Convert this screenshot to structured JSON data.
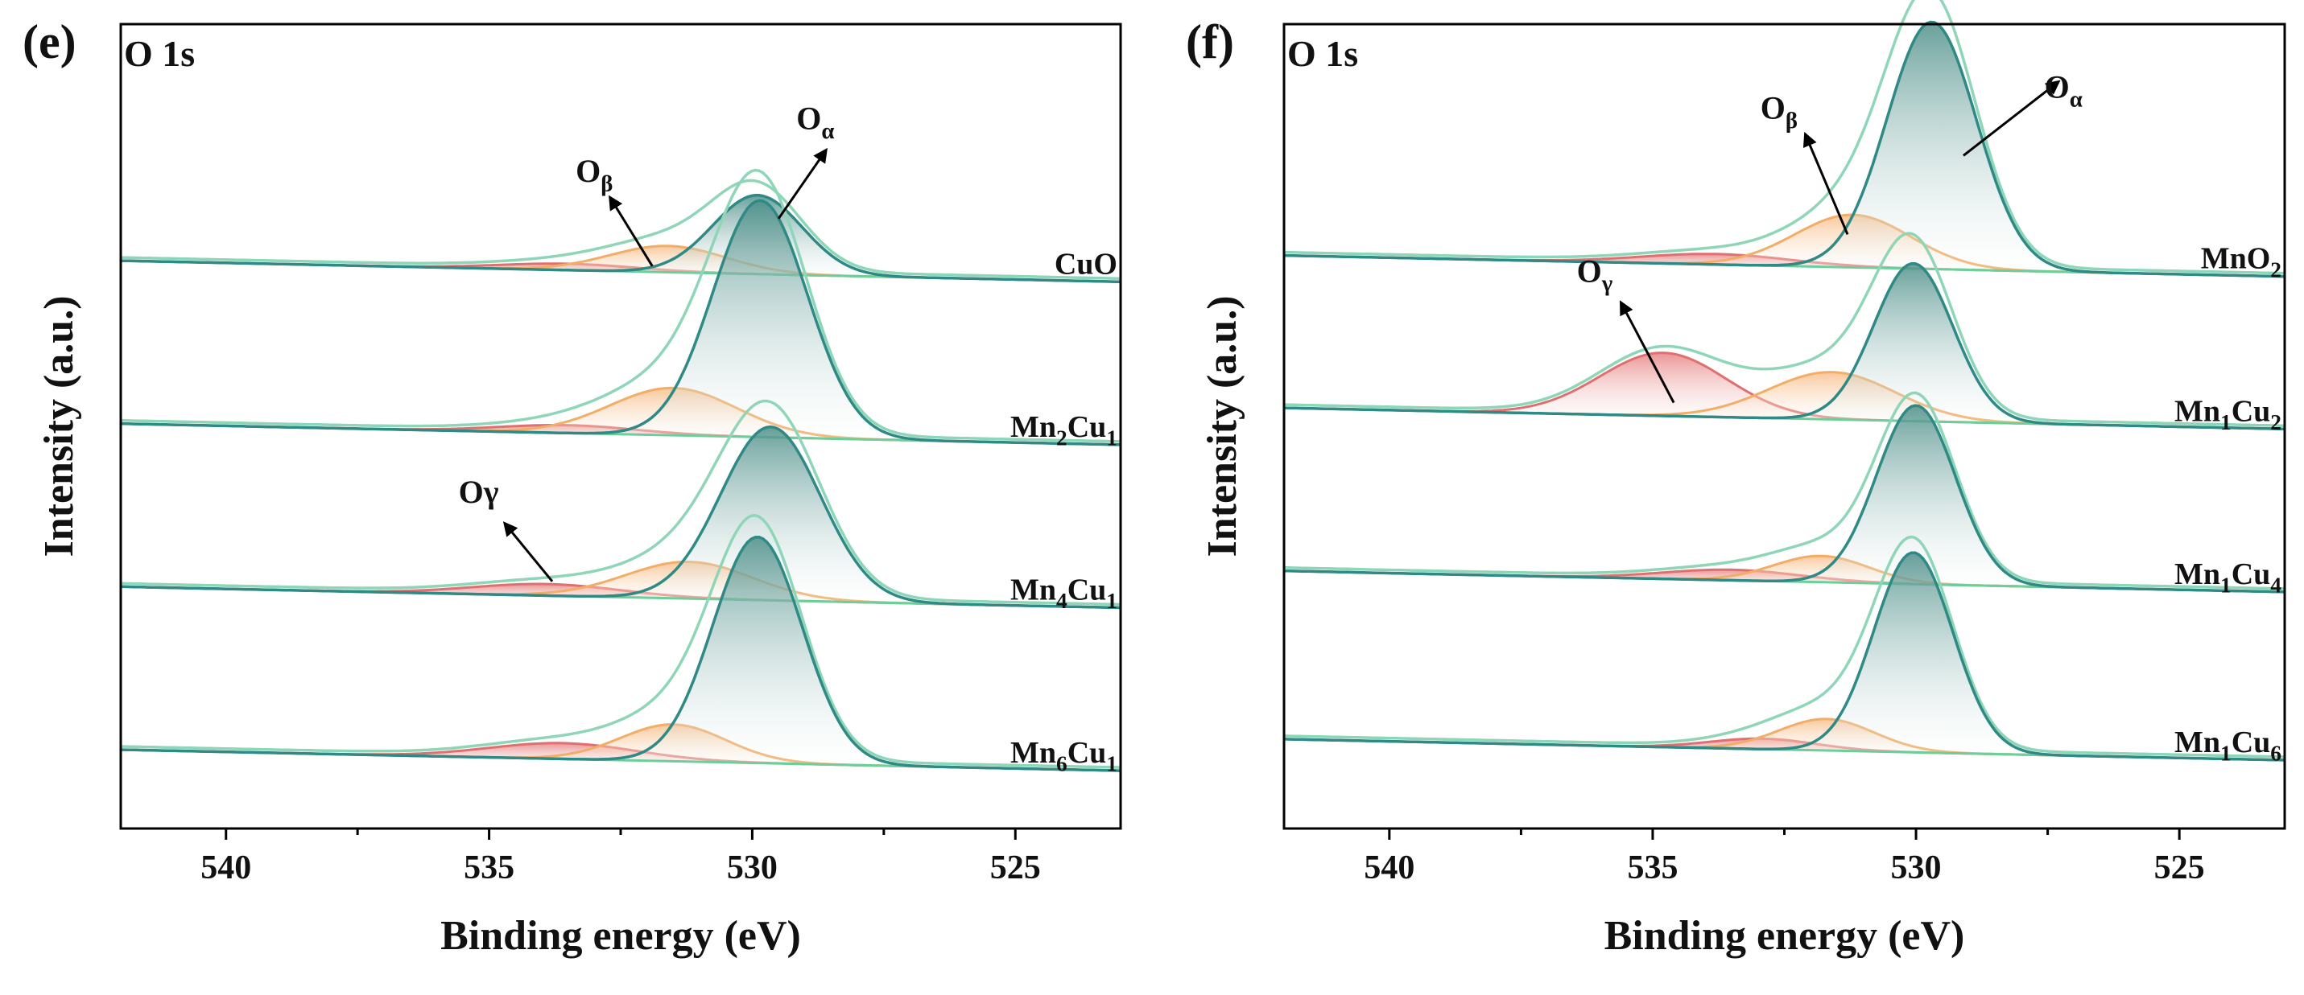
{
  "figure": {
    "panels": [
      "e",
      "f"
    ]
  },
  "chart_data": [
    {
      "type": "line",
      "panel_label": "(e)",
      "title": "O 1s",
      "xlabel": "Binding energy (eV)",
      "ylabel": "Intensity (a.u.)",
      "x_reversed": true,
      "xlim": [
        542,
        523
      ],
      "xticks": [
        540,
        535,
        530,
        525
      ],
      "series": [
        {
          "name": "CuO",
          "sample": {
            "base": "CuO",
            "parts": [
              {
                "t": "CuO"
              }
            ]
          },
          "offset": 0.83,
          "tilt": -0.04,
          "peaks": [
            {
              "component": "Oα",
              "center": 529.9,
              "height": 0.15,
              "width": 0.85
            },
            {
              "component": "Oβ",
              "center": 531.6,
              "height": 0.05,
              "width": 1.1
            },
            {
              "component": "Oγ",
              "center": 533.5,
              "height": 0.012,
              "width": 1.3
            }
          ]
        },
        {
          "name": "Mn2Cu1",
          "sample": {
            "base": "Mn2Cu1",
            "parts": [
              {
                "t": "Mn"
              },
              {
                "t": "2",
                "sub": true
              },
              {
                "t": "Cu"
              },
              {
                "t": "1",
                "sub": true
              }
            ]
          },
          "offset": 0.52,
          "tilt": -0.04,
          "peaks": [
            {
              "component": "Oα",
              "center": 529.85,
              "height": 0.45,
              "width": 0.9
            },
            {
              "component": "Oβ",
              "center": 531.5,
              "height": 0.09,
              "width": 1.2
            },
            {
              "component": "Oγ",
              "center": 533.5,
              "height": 0.015,
              "width": 1.3
            }
          ]
        },
        {
          "name": "Mn4Cu1",
          "sample": {
            "base": "Mn4Cu1",
            "parts": [
              {
                "t": "Mn"
              },
              {
                "t": "4",
                "sub": true
              },
              {
                "t": "Cu"
              },
              {
                "t": "1",
                "sub": true
              }
            ]
          },
          "offset": 0.21,
          "tilt": -0.04,
          "peaks": [
            {
              "component": "Oα",
              "center": 529.65,
              "height": 0.33,
              "width": 0.95
            },
            {
              "component": "Oβ",
              "center": 531.2,
              "height": 0.07,
              "width": 1.2
            },
            {
              "component": "Oγ",
              "center": 533.9,
              "height": 0.022,
              "width": 1.4
            }
          ]
        },
        {
          "name": "Mn6Cu1",
          "sample": {
            "base": "Mn6Cu1",
            "parts": [
              {
                "t": "Mn"
              },
              {
                "t": "6",
                "sub": true
              },
              {
                "t": "Cu"
              },
              {
                "t": "1",
                "sub": true
              }
            ]
          },
          "offset": -0.1,
          "tilt": -0.04,
          "peaks": [
            {
              "component": "Oα",
              "center": 529.9,
              "height": 0.43,
              "width": 0.85
            },
            {
              "component": "Oβ",
              "center": 531.5,
              "height": 0.07,
              "width": 1.0
            },
            {
              "component": "Oγ",
              "center": 533.6,
              "height": 0.03,
              "width": 1.4
            }
          ]
        }
      ],
      "annotations": [
        {
          "text": "Oβ",
          "parts": [
            {
              "t": "O"
            },
            {
              "t": "β",
              "sub": true
            }
          ],
          "tip": [
            531.9,
            0.82
          ],
          "tail": [
            532.7,
            0.95
          ],
          "label": [
            533.0,
            0.98
          ]
        },
        {
          "text": "Oα",
          "parts": [
            {
              "t": "O"
            },
            {
              "t": "α",
              "sub": true
            }
          ],
          "tip": [
            529.5,
            0.91
          ],
          "tail": [
            528.6,
            1.04
          ],
          "label": [
            528.8,
            1.08
          ]
        },
        {
          "text": "Oγ",
          "parts": [
            {
              "t": "O"
            },
            {
              "t": "γ",
              "sub": false
            }
          ],
          "tip": [
            533.8,
            0.22
          ],
          "tail": [
            534.7,
            0.33
          ],
          "label": [
            535.2,
            0.37
          ]
        }
      ]
    },
    {
      "type": "line",
      "panel_label": "(f)",
      "title": "O 1s",
      "xlabel": "Binding energy (eV)",
      "ylabel": "Intensity (a.u.)",
      "x_reversed": true,
      "xlim": [
        542,
        523
      ],
      "xticks": [
        540,
        535,
        530,
        525
      ],
      "series": [
        {
          "name": "MnO2",
          "sample": {
            "base": "MnO2",
            "parts": [
              {
                "t": "MnO"
              },
              {
                "t": "2",
                "sub": true
              }
            ]
          },
          "offset": 0.84,
          "tilt": -0.04,
          "peaks": [
            {
              "component": "Oα",
              "center": 529.7,
              "height": 0.47,
              "width": 0.85
            },
            {
              "component": "Oβ",
              "center": 531.2,
              "height": 0.1,
              "width": 1.1
            },
            {
              "component": "Oγ",
              "center": 533.8,
              "height": 0.02,
              "width": 1.4
            }
          ]
        },
        {
          "name": "Mn1Cu2",
          "sample": {
            "base": "Mn1Cu2",
            "parts": [
              {
                "t": "Mn"
              },
              {
                "t": "1",
                "sub": true
              },
              {
                "t": "Cu"
              },
              {
                "t": "2",
                "sub": true
              }
            ]
          },
          "offset": 0.55,
          "tilt": -0.04,
          "peaks": [
            {
              "component": "Oα",
              "center": 530.05,
              "height": 0.3,
              "width": 0.75
            },
            {
              "component": "Oβ",
              "center": 531.6,
              "height": 0.09,
              "width": 1.2
            },
            {
              "component": "Oγ",
              "center": 534.8,
              "height": 0.12,
              "width": 1.2
            }
          ]
        },
        {
          "name": "Mn1Cu4",
          "sample": {
            "base": "Mn1Cu4",
            "parts": [
              {
                "t": "Mn"
              },
              {
                "t": "1",
                "sub": true
              },
              {
                "t": "Cu"
              },
              {
                "t": "4",
                "sub": true
              }
            ]
          },
          "offset": 0.24,
          "tilt": -0.04,
          "peaks": [
            {
              "component": "Oα",
              "center": 530.0,
              "height": 0.34,
              "width": 0.75
            },
            {
              "component": "Oβ",
              "center": 531.8,
              "height": 0.05,
              "width": 0.9
            },
            {
              "component": "Oγ",
              "center": 533.5,
              "height": 0.02,
              "width": 1.3
            }
          ]
        },
        {
          "name": "Mn1Cu6",
          "sample": {
            "base": "Mn1Cu6",
            "parts": [
              {
                "t": "Mn"
              },
              {
                "t": "1",
                "sub": true
              },
              {
                "t": "Cu"
              },
              {
                "t": "6",
                "sub": true
              }
            ]
          },
          "offset": -0.08,
          "tilt": -0.04,
          "peaks": [
            {
              "component": "Oα",
              "center": 530.05,
              "height": 0.38,
              "width": 0.75
            },
            {
              "component": "Oβ",
              "center": 531.7,
              "height": 0.06,
              "width": 0.9
            },
            {
              "component": "Oγ",
              "center": 532.9,
              "height": 0.02,
              "width": 1.0
            }
          ]
        }
      ],
      "annotations": [
        {
          "text": "Oβ",
          "parts": [
            {
              "t": "O"
            },
            {
              "t": "β",
              "sub": true
            }
          ],
          "tip": [
            531.3,
            0.88
          ],
          "tail": [
            532.1,
            1.07
          ],
          "label": [
            532.6,
            1.1
          ]
        },
        {
          "text": "Oα",
          "parts": [
            {
              "t": "O"
            },
            {
              "t": "α",
              "sub": true
            }
          ],
          "tip": [
            529.1,
            1.03
          ],
          "tail": [
            527.3,
            1.17
          ],
          "label": [
            527.2,
            1.14
          ]
        },
        {
          "text": "Oγ",
          "parts": [
            {
              "t": "O"
            },
            {
              "t": "γ",
              "sub": true
            }
          ],
          "tip": [
            534.6,
            0.56
          ],
          "tail": [
            535.6,
            0.75
          ],
          "label": [
            536.1,
            0.79
          ]
        }
      ]
    }
  ],
  "colors": {
    "axis": "#000000",
    "envelope": "#8fd6b8",
    "alpha_line": "#3f9b94",
    "alpha_fill_top": "#4e8f89",
    "beta_line": "#f2ad66",
    "beta_fill": "#f8c08b",
    "gamma_line": "#e07070",
    "gamma_fill": "#ef9a9a",
    "baseline": "#6ccf9a"
  }
}
